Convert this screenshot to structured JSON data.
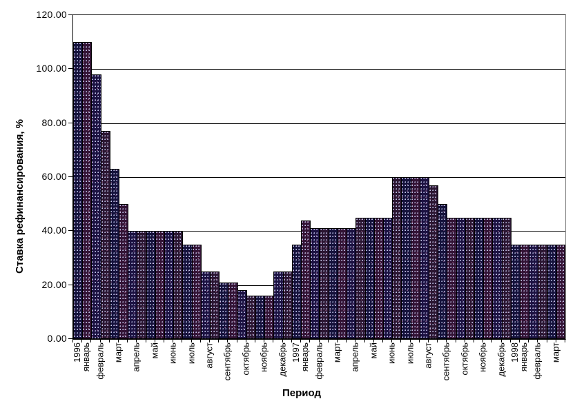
{
  "chart_data": {
    "type": "bar",
    "title": "",
    "xlabel": "Период",
    "ylabel": "Ставка рефинансирования, %",
    "ylim": [
      0,
      120
    ],
    "ytick_step": 20,
    "ytick_labels": [
      "0.00",
      "20.00",
      "40.00",
      "60.00",
      "80.00",
      "100.00",
      "120.00"
    ],
    "grid": true,
    "legend": "none",
    "bars_per_month": 2,
    "months": [
      {
        "year": "1996",
        "month": "январь"
      },
      {
        "month": "февраль"
      },
      {
        "month": "март"
      },
      {
        "month": "апрель"
      },
      {
        "month": "май"
      },
      {
        "month": "июнь"
      },
      {
        "month": "июль"
      },
      {
        "month": "август"
      },
      {
        "month": "сентябрь"
      },
      {
        "month": "октябрь"
      },
      {
        "month": "ноябрь"
      },
      {
        "month": "декабрь"
      },
      {
        "year": "1997",
        "month": "январь"
      },
      {
        "month": "февраль"
      },
      {
        "month": "март"
      },
      {
        "month": "апрель"
      },
      {
        "month": "май"
      },
      {
        "month": "июнь"
      },
      {
        "month": "июль"
      },
      {
        "month": "август"
      },
      {
        "month": "сентябрь"
      },
      {
        "month": "октябрь"
      },
      {
        "month": "ноябрь"
      },
      {
        "month": "декабрь"
      },
      {
        "year": "1998",
        "month": "январь"
      },
      {
        "month": "февраль"
      },
      {
        "month": "март"
      }
    ],
    "values": [
      110,
      110,
      98,
      77,
      63,
      50,
      40,
      40,
      40,
      40,
      40,
      40,
      35,
      35,
      25,
      25,
      21,
      21,
      18,
      16,
      16,
      16,
      25,
      25,
      35,
      44,
      41,
      41,
      41,
      41,
      41,
      45,
      45,
      45,
      45,
      60,
      60,
      60,
      60,
      57,
      50,
      45,
      45,
      45,
      45,
      45,
      45,
      45,
      35,
      35,
      35,
      35,
      35,
      35
    ],
    "colors": {
      "bar_palette": [
        "#15123c",
        "#331335",
        "#1c1242",
        "#2b1632"
      ],
      "bar_border": "#000000",
      "gridline": "#000000",
      "plot_background": "#ffffff",
      "page_background": "#ffffff",
      "text": "#000000"
    }
  }
}
